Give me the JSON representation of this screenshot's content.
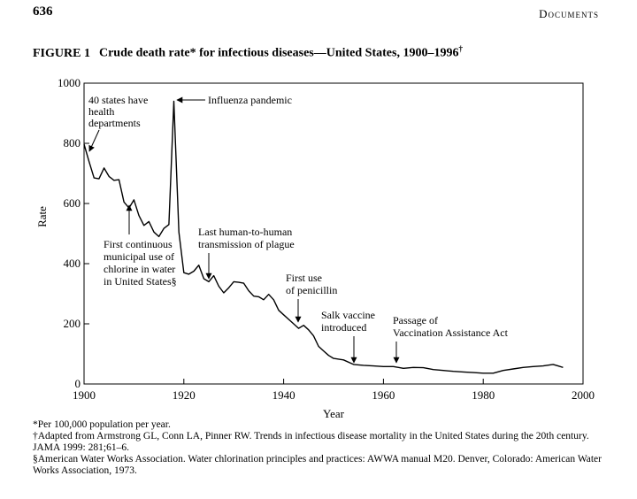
{
  "header": {
    "page_number": "636",
    "running_head": "Documents"
  },
  "figure": {
    "label": "FIGURE 1",
    "caption": "Crude death rate* for infectious diseases—United States, 1900–1996",
    "caption_mark": "†"
  },
  "chart_data": {
    "type": "line",
    "title": "Crude death rate* for infectious diseases—United States, 1900–1996†",
    "xlabel": "Year",
    "ylabel": "Rate",
    "xlim": [
      1900,
      2000
    ],
    "ylim": [
      0,
      1000
    ],
    "x_ticks": [
      1900,
      1920,
      1940,
      1960,
      1980,
      2000
    ],
    "y_ticks": [
      0,
      200,
      400,
      600,
      800,
      1000
    ],
    "grid": false,
    "series": [
      {
        "color": "#000000",
        "x": [
          1900,
          1901,
          1902,
          1903,
          1904,
          1905,
          1906,
          1907,
          1908,
          1909,
          1910,
          1911,
          1912,
          1913,
          1914,
          1915,
          1916,
          1917,
          1918,
          1919,
          1920,
          1921,
          1922,
          1923,
          1924,
          1925,
          1926,
          1927,
          1928,
          1929,
          1930,
          1931,
          1932,
          1933,
          1934,
          1935,
          1936,
          1937,
          1938,
          1939,
          1940,
          1941,
          1942,
          1943,
          1944,
          1945,
          1946,
          1947,
          1948,
          1949,
          1950,
          1952,
          1954,
          1956,
          1958,
          1960,
          1962,
          1964,
          1966,
          1968,
          1970,
          1972,
          1974,
          1976,
          1978,
          1980,
          1982,
          1984,
          1986,
          1988,
          1990,
          1992,
          1994,
          1995,
          1996
        ],
        "y": [
          797,
          740,
          685,
          682,
          718,
          690,
          677,
          679,
          605,
          585,
          612,
          560,
          527,
          540,
          505,
          490,
          517,
          530,
          940,
          505,
          370,
          365,
          375,
          395,
          350,
          340,
          360,
          325,
          303,
          320,
          340,
          338,
          335,
          310,
          292,
          290,
          280,
          298,
          280,
          245,
          230,
          215,
          200,
          185,
          195,
          180,
          160,
          125,
          110,
          95,
          85,
          80,
          65,
          62,
          60,
          58,
          58,
          52,
          55,
          54,
          48,
          45,
          42,
          40,
          38,
          36,
          36,
          45,
          50,
          55,
          58,
          60,
          65,
          60,
          55
        ]
      }
    ],
    "annotations": [
      {
        "text": "40 states have health departments",
        "x": 1900,
        "y": 800
      },
      {
        "text": "Influenza pandemic",
        "x": 1918,
        "y": 940
      },
      {
        "text": "First continuous municipal use of chlorine in water in United States§",
        "x": 1908,
        "y": 610
      },
      {
        "text": "Last human-to-human transmission of plague",
        "x": 1925,
        "y": 345
      },
      {
        "text": "First use of penicillin",
        "x": 1943,
        "y": 185
      },
      {
        "text": "Salk vaccine introduced",
        "x": 1955,
        "y": 62
      },
      {
        "text": "Passage of Vaccination Assistance Act",
        "x": 1962,
        "y": 58
      }
    ]
  },
  "footnotes": [
    "*Per 100,000 population per year.",
    "†Adapted from Armstrong GL, Conn LA, Pinner RW. Trends in infectious disease mortality in the United States during the 20th century. JAMA 1999: 281;61–6.",
    "§American Water Works Association. Water chlorination principles and practices: AWWA manual M20. Denver, Colorado: American Water Works Association, 1973."
  ]
}
